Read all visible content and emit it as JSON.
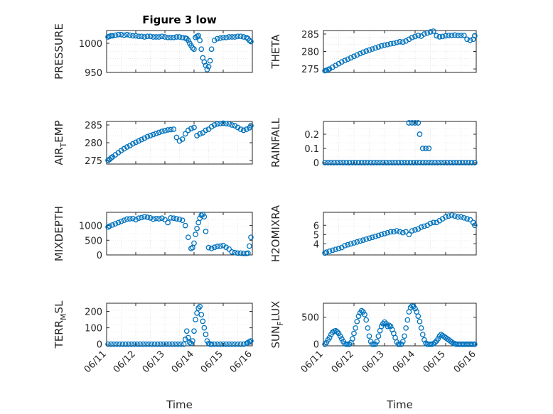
{
  "chart_data": [
    {
      "id": "pressure",
      "type": "scatter",
      "title": "Figure 3 low",
      "ylabel": "PRESSURE",
      "ylabel_sub": "",
      "xlabel": "",
      "xlim": [
        0,
        5
      ],
      "ylim": [
        950,
        1022
      ],
      "yticks": [
        950,
        1000
      ],
      "show_xticklabels": false,
      "x": [
        0.05,
        0.1,
        0.15,
        0.2,
        0.3,
        0.4,
        0.5,
        0.6,
        0.7,
        0.8,
        0.9,
        1.0,
        1.1,
        1.2,
        1.3,
        1.4,
        1.5,
        1.6,
        1.7,
        1.8,
        1.9,
        2.0,
        2.1,
        2.2,
        2.3,
        2.4,
        2.5,
        2.6,
        2.7,
        2.75,
        2.8,
        2.85,
        2.9,
        2.95,
        3.0,
        3.05,
        3.1,
        3.15,
        3.2,
        3.25,
        3.3,
        3.35,
        3.4,
        3.45,
        3.5,
        3.55,
        3.6,
        3.7,
        3.8,
        3.9,
        4.0,
        4.1,
        4.2,
        4.3,
        4.4,
        4.5,
        4.6,
        4.7,
        4.8,
        4.85,
        4.9,
        4.95
      ],
      "y": [
        1011,
        1012,
        1013,
        1013,
        1014,
        1015,
        1015,
        1014,
        1015,
        1014,
        1013,
        1013,
        1012,
        1012,
        1011,
        1012,
        1012,
        1011,
        1011,
        1011,
        1012,
        1011,
        1010,
        1010,
        1010,
        1011,
        1011,
        1010,
        1009,
        1008,
        1005,
        1000,
        996,
        992,
        990,
        1010,
        1012,
        1013,
        1005,
        990,
        975,
        968,
        962,
        955,
        960,
        970,
        990,
        1005,
        1008,
        1009,
        1010,
        1010,
        1011,
        1011,
        1011,
        1012,
        1012,
        1011,
        1010,
        1008,
        1005,
        1003
      ]
    },
    {
      "id": "theta",
      "type": "scatter",
      "title": "",
      "ylabel": "THETA",
      "ylabel_sub": "",
      "xlabel": "",
      "xlim": [
        0,
        5
      ],
      "ylim": [
        274,
        286
      ],
      "yticks": [
        275,
        280,
        285
      ],
      "show_xticklabels": false,
      "x": [
        0.05,
        0.1,
        0.15,
        0.2,
        0.3,
        0.4,
        0.5,
        0.6,
        0.7,
        0.8,
        0.9,
        1.0,
        1.1,
        1.2,
        1.3,
        1.4,
        1.5,
        1.6,
        1.7,
        1.8,
        1.9,
        2.0,
        2.1,
        2.2,
        2.3,
        2.4,
        2.5,
        2.6,
        2.7,
        2.8,
        2.9,
        3.0,
        3.1,
        3.2,
        3.3,
        3.4,
        3.5,
        3.6,
        3.7,
        3.8,
        3.9,
        4.0,
        4.1,
        4.2,
        4.3,
        4.4,
        4.5,
        4.6,
        4.7,
        4.8,
        4.9,
        4.95
      ],
      "y": [
        274.5,
        274.6,
        274.8,
        275.0,
        275.5,
        276.0,
        276.5,
        277.0,
        277.4,
        277.8,
        278.2,
        278.6,
        279.0,
        279.4,
        279.8,
        280.1,
        280.4,
        280.7,
        281.0,
        281.3,
        281.6,
        281.8,
        282.0,
        282.2,
        282.3,
        282.6,
        282.8,
        282.7,
        283.0,
        283.5,
        284.0,
        284.3,
        284.6,
        284.4,
        285.0,
        285.3,
        285.6,
        285.8,
        284.5,
        284.2,
        284.3,
        284.5,
        284.6,
        284.6,
        284.7,
        284.6,
        284.6,
        284.6,
        283.5,
        283.2,
        283.5,
        284.5
      ]
    },
    {
      "id": "air_temp",
      "type": "scatter",
      "title": "",
      "ylabel": "AIR",
      "ylabel_sub": "T",
      "ylabel_rest": "EMP",
      "xlabel": "",
      "xlim": [
        0,
        5
      ],
      "ylim": [
        274,
        286
      ],
      "yticks": [
        275,
        280,
        285
      ],
      "show_xticklabels": false,
      "x": [
        0.05,
        0.1,
        0.15,
        0.2,
        0.3,
        0.4,
        0.5,
        0.6,
        0.7,
        0.8,
        0.9,
        1.0,
        1.1,
        1.2,
        1.3,
        1.4,
        1.5,
        1.6,
        1.7,
        1.8,
        1.9,
        2.0,
        2.1,
        2.2,
        2.3,
        2.4,
        2.5,
        2.6,
        2.7,
        2.8,
        2.9,
        3.0,
        3.1,
        3.2,
        3.3,
        3.4,
        3.5,
        3.6,
        3.7,
        3.8,
        3.9,
        4.0,
        4.1,
        4.2,
        4.3,
        4.4,
        4.5,
        4.6,
        4.7,
        4.8,
        4.9,
        4.95
      ],
      "y": [
        275.0,
        275.3,
        275.7,
        276.0,
        276.6,
        277.2,
        277.8,
        278.3,
        278.8,
        279.2,
        279.7,
        280.1,
        280.5,
        280.9,
        281.3,
        281.7,
        282.0,
        282.3,
        282.6,
        282.9,
        283.2,
        283.4,
        283.6,
        283.7,
        283.8,
        281.5,
        280.5,
        281.0,
        282.5,
        283.5,
        284.0,
        284.3,
        282.0,
        282.5,
        282.8,
        283.5,
        283.8,
        284.5,
        285.0,
        285.3,
        285.4,
        285.5,
        285.4,
        285.3,
        285.0,
        284.8,
        284.3,
        283.8,
        283.5,
        283.8,
        284.2,
        284.8
      ]
    },
    {
      "id": "rainfall",
      "type": "scatter",
      "title": "",
      "ylabel": "RAINFALL",
      "ylabel_sub": "",
      "xlabel": "",
      "xlim": [
        0,
        5
      ],
      "ylim": [
        -0.01,
        0.29
      ],
      "yticks": [
        0,
        0.1,
        0.2
      ],
      "show_xticklabels": false,
      "x": [
        0.05,
        0.15,
        0.25,
        0.35,
        0.45,
        0.55,
        0.65,
        0.75,
        0.85,
        0.95,
        1.05,
        1.15,
        1.25,
        1.35,
        1.45,
        1.55,
        1.65,
        1.75,
        1.85,
        1.95,
        2.05,
        2.15,
        2.25,
        2.35,
        2.45,
        2.55,
        2.65,
        2.75,
        2.85,
        2.95,
        3.05,
        3.15,
        3.25,
        3.35,
        3.45,
        3.55,
        3.65,
        3.75,
        3.85,
        3.95,
        4.05,
        4.15,
        4.25,
        4.35,
        4.45,
        4.55,
        4.65,
        4.75,
        4.85,
        4.95,
        2.8,
        2.9,
        3.0,
        3.1,
        3.15,
        3.25,
        3.35,
        3.45
      ],
      "y": [
        0,
        0,
        0,
        0,
        0,
        0,
        0,
        0,
        0,
        0,
        0,
        0,
        0,
        0,
        0,
        0,
        0,
        0,
        0,
        0,
        0,
        0,
        0,
        0,
        0,
        0,
        0,
        0,
        0,
        0,
        0,
        0,
        0,
        0,
        0,
        0,
        0,
        0,
        0,
        0,
        0,
        0,
        0,
        0,
        0,
        0,
        0,
        0,
        0,
        0,
        0.28,
        0.28,
        0.28,
        0.28,
        0.2,
        0.1,
        0.1,
        0.1
      ]
    },
    {
      "id": "mixdepth",
      "type": "scatter",
      "title": "",
      "ylabel": "MIXDEPTH",
      "ylabel_sub": "",
      "xlabel": "",
      "xlim": [
        0,
        5
      ],
      "ylim": [
        0,
        1450
      ],
      "yticks": [
        0,
        500,
        1000
      ],
      "show_xticklabels": false,
      "x": [
        0.05,
        0.1,
        0.2,
        0.3,
        0.4,
        0.5,
        0.6,
        0.7,
        0.8,
        0.9,
        1.0,
        1.1,
        1.2,
        1.3,
        1.4,
        1.5,
        1.6,
        1.7,
        1.8,
        1.9,
        2.0,
        2.1,
        2.2,
        2.3,
        2.4,
        2.5,
        2.6,
        2.7,
        2.8,
        2.9,
        2.95,
        3.0,
        3.05,
        3.1,
        3.15,
        3.2,
        3.25,
        3.3,
        3.35,
        3.4,
        3.5,
        3.6,
        3.7,
        3.8,
        3.9,
        4.0,
        4.1,
        4.2,
        4.3,
        4.4,
        4.5,
        4.6,
        4.7,
        4.8,
        4.85,
        4.9,
        4.95
      ],
      "y": [
        950,
        980,
        1020,
        1060,
        1100,
        1140,
        1180,
        1220,
        1230,
        1240,
        1200,
        1250,
        1270,
        1300,
        1280,
        1260,
        1220,
        1240,
        1230,
        1250,
        1200,
        1100,
        1260,
        1250,
        1230,
        1210,
        1180,
        1000,
        600,
        220,
        250,
        400,
        700,
        900,
        1100,
        1250,
        1350,
        1380,
        1300,
        800,
        250,
        220,
        260,
        290,
        300,
        320,
        260,
        200,
        100,
        80,
        60,
        60,
        50,
        50,
        60,
        300,
        600
      ]
    },
    {
      "id": "h2omixra",
      "type": "scatter",
      "title": "",
      "ylabel": "H2OMIXRA",
      "ylabel_sub": "",
      "xlabel": "",
      "xlim": [
        0,
        5
      ],
      "ylim": [
        2.8,
        7.4
      ],
      "yticks": [
        4,
        5,
        6
      ],
      "show_xticklabels": false,
      "x": [
        0.05,
        0.1,
        0.2,
        0.3,
        0.4,
        0.5,
        0.6,
        0.7,
        0.8,
        0.9,
        1.0,
        1.1,
        1.2,
        1.3,
        1.4,
        1.5,
        1.6,
        1.7,
        1.8,
        1.9,
        2.0,
        2.1,
        2.2,
        2.3,
        2.4,
        2.5,
        2.6,
        2.7,
        2.8,
        2.9,
        3.0,
        3.1,
        3.2,
        3.3,
        3.4,
        3.5,
        3.6,
        3.7,
        3.8,
        3.9,
        4.0,
        4.1,
        4.2,
        4.3,
        4.4,
        4.5,
        4.6,
        4.7,
        4.8,
        4.9,
        4.95
      ],
      "y": [
        3.0,
        3.1,
        3.2,
        3.3,
        3.4,
        3.5,
        3.6,
        3.8,
        3.9,
        4.0,
        4.1,
        4.2,
        4.3,
        4.4,
        4.5,
        4.6,
        4.7,
        4.8,
        4.9,
        5.0,
        5.1,
        5.2,
        5.3,
        5.3,
        5.4,
        5.3,
        5.2,
        5.3,
        5.0,
        5.4,
        5.5,
        5.6,
        5.8,
        5.9,
        6.0,
        6.2,
        6.3,
        6.3,
        6.5,
        6.7,
        6.9,
        7.0,
        7.1,
        7.0,
        6.9,
        6.9,
        6.8,
        6.7,
        6.6,
        6.3,
        6.0
      ]
    },
    {
      "id": "terr_msl",
      "type": "scatter",
      "title": "",
      "ylabel": "TERR",
      "ylabel_sub": "M",
      "ylabel_rest": "SL",
      "xlabel": "Time",
      "xlim": [
        0,
        5
      ],
      "ylim": [
        -10,
        250
      ],
      "yticks": [
        0,
        100,
        200
      ],
      "show_xticklabels": true,
      "xticklabels": [
        "06/11",
        "06/12",
        "06/13",
        "06/14",
        "06/15",
        "06/16"
      ],
      "x": [
        0.05,
        0.15,
        0.25,
        0.35,
        0.45,
        0.55,
        0.65,
        0.75,
        0.85,
        0.95,
        1.05,
        1.15,
        1.25,
        1.35,
        1.45,
        1.55,
        1.65,
        1.75,
        1.85,
        1.95,
        2.05,
        2.15,
        2.25,
        2.35,
        2.45,
        2.55,
        2.65,
        2.7,
        2.75,
        2.8,
        2.85,
        2.9,
        2.95,
        3.0,
        3.05,
        3.1,
        3.15,
        3.2,
        3.25,
        3.3,
        3.35,
        3.4,
        3.45,
        3.5,
        3.55,
        3.6,
        3.7,
        3.8,
        3.9,
        4.0,
        4.1,
        4.2,
        4.3,
        4.4,
        4.5,
        4.6,
        4.7,
        4.8,
        4.85,
        4.9,
        4.95
      ],
      "y": [
        0,
        0,
        0,
        0,
        0,
        0,
        0,
        0,
        0,
        0,
        0,
        0,
        0,
        0,
        0,
        0,
        0,
        0,
        0,
        0,
        0,
        0,
        0,
        0,
        0,
        0,
        0,
        30,
        80,
        40,
        10,
        5,
        20,
        80,
        150,
        190,
        220,
        230,
        180,
        140,
        100,
        60,
        20,
        5,
        0,
        0,
        0,
        0,
        0,
        0,
        0,
        0,
        0,
        0,
        0,
        0,
        0,
        5,
        10,
        15,
        20
      ]
    },
    {
      "id": "sun_flux",
      "type": "scatter",
      "title": "",
      "ylabel": "SUN",
      "ylabel_sub": "F",
      "ylabel_rest": "LUX",
      "xlabel": "Time",
      "xlim": [
        0,
        5
      ],
      "ylim": [
        -30,
        760
      ],
      "yticks": [
        0,
        500
      ],
      "show_xticklabels": true,
      "xticklabels": [
        "06/11",
        "06/12",
        "06/13",
        "06/14",
        "06/15",
        "06/16"
      ],
      "x": [
        0.05,
        0.1,
        0.15,
        0.2,
        0.25,
        0.3,
        0.35,
        0.4,
        0.45,
        0.5,
        0.55,
        0.6,
        0.65,
        0.7,
        0.75,
        0.8,
        0.85,
        0.9,
        0.95,
        1.0,
        1.05,
        1.1,
        1.15,
        1.2,
        1.25,
        1.3,
        1.35,
        1.4,
        1.45,
        1.5,
        1.55,
        1.6,
        1.65,
        1.7,
        1.75,
        1.8,
        1.85,
        1.9,
        1.95,
        2.0,
        2.05,
        2.1,
        2.15,
        2.2,
        2.25,
        2.3,
        2.35,
        2.4,
        2.45,
        2.5,
        2.55,
        2.6,
        2.65,
        2.7,
        2.75,
        2.8,
        2.85,
        2.9,
        2.95,
        3.0,
        3.05,
        3.1,
        3.15,
        3.2,
        3.25,
        3.3,
        3.35,
        3.4,
        3.45,
        3.5,
        3.55,
        3.6,
        3.65,
        3.7,
        3.75,
        3.8,
        3.85,
        3.9,
        3.95,
        4.0,
        4.05,
        4.1,
        4.15,
        4.2,
        4.25,
        4.3,
        4.35,
        4.4,
        4.45,
        4.5,
        4.55,
        4.6,
        4.65,
        4.7,
        4.75,
        4.8,
        4.85,
        4.9,
        4.95
      ],
      "y": [
        0,
        30,
        80,
        120,
        180,
        220,
        240,
        250,
        230,
        200,
        150,
        100,
        50,
        10,
        0,
        0,
        0,
        30,
        100,
        200,
        300,
        420,
        520,
        580,
        620,
        600,
        550,
        450,
        300,
        150,
        50,
        0,
        0,
        0,
        50,
        150,
        250,
        330,
        380,
        410,
        380,
        330,
        350,
        330,
        270,
        200,
        120,
        40,
        0,
        0,
        0,
        50,
        150,
        300,
        450,
        600,
        680,
        710,
        700,
        660,
        600,
        520,
        420,
        300,
        180,
        80,
        20,
        0,
        0,
        0,
        0,
        10,
        30,
        60,
        100,
        150,
        180,
        160,
        140,
        120,
        100,
        80,
        60,
        40,
        20,
        10,
        0,
        0,
        0,
        0,
        0,
        0,
        0,
        0,
        0,
        0,
        0,
        0,
        0
      ]
    }
  ]
}
